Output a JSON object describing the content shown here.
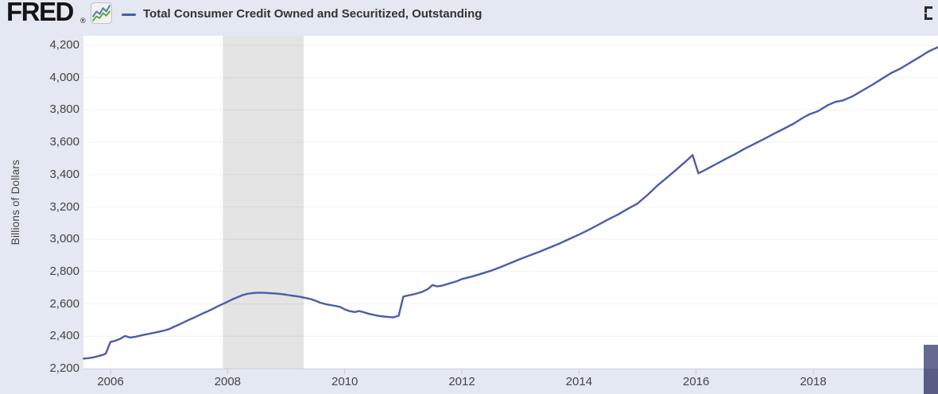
{
  "header": {
    "logo_text": "FRED",
    "registered_mark": "®",
    "legend": {
      "label": "Total Consumer Credit Owned and Securitized, Outstanding"
    }
  },
  "y_axis_title": "Billions of Dollars",
  "chart_data": {
    "type": "line",
    "title": "Total Consumer Credit Owned and Securitized, Outstanding",
    "ylabel": "Billions of Dollars",
    "xlabel": "",
    "units": "Billions of Dollars",
    "grid": "horizontal",
    "legend_position": "top-left",
    "x_ticks": [
      2006,
      2008,
      2010,
      2012,
      2014,
      2016,
      2018
    ],
    "y_ticks": [
      2200,
      2400,
      2600,
      2800,
      3000,
      3200,
      3400,
      3600,
      3800,
      4000,
      4200
    ],
    "xlim": [
      2005.54,
      2020.15
    ],
    "ylim": [
      2200,
      4200
    ],
    "recession_bands": [
      [
        2007.92,
        2009.3
      ]
    ],
    "series": [
      {
        "name": "Total Consumer Credit Owned and Securitized, Outstanding",
        "color": "#4a5da8",
        "points": [
          [
            2005.54,
            2262
          ],
          [
            2005.63,
            2265
          ],
          [
            2005.71,
            2270
          ],
          [
            2005.79,
            2277
          ],
          [
            2005.88,
            2286
          ],
          [
            2005.92,
            2293
          ],
          [
            2006.0,
            2365
          ],
          [
            2006.08,
            2372
          ],
          [
            2006.17,
            2385
          ],
          [
            2006.25,
            2402
          ],
          [
            2006.33,
            2392
          ],
          [
            2006.42,
            2396
          ],
          [
            2006.5,
            2403
          ],
          [
            2006.58,
            2410
          ],
          [
            2006.67,
            2416
          ],
          [
            2006.75,
            2422
          ],
          [
            2006.83,
            2428
          ],
          [
            2006.92,
            2436
          ],
          [
            2007.0,
            2444
          ],
          [
            2007.08,
            2458
          ],
          [
            2007.17,
            2472
          ],
          [
            2007.25,
            2486
          ],
          [
            2007.33,
            2500
          ],
          [
            2007.42,
            2514
          ],
          [
            2007.5,
            2528
          ],
          [
            2007.58,
            2542
          ],
          [
            2007.67,
            2556
          ],
          [
            2007.75,
            2570
          ],
          [
            2007.83,
            2585
          ],
          [
            2007.92,
            2600
          ],
          [
            2008.0,
            2614
          ],
          [
            2008.08,
            2628
          ],
          [
            2008.17,
            2642
          ],
          [
            2008.25,
            2654
          ],
          [
            2008.33,
            2662
          ],
          [
            2008.42,
            2667
          ],
          [
            2008.5,
            2669
          ],
          [
            2008.58,
            2670
          ],
          [
            2008.67,
            2668
          ],
          [
            2008.75,
            2666
          ],
          [
            2008.83,
            2664
          ],
          [
            2008.92,
            2661
          ],
          [
            2009.0,
            2657
          ],
          [
            2009.08,
            2652
          ],
          [
            2009.17,
            2648
          ],
          [
            2009.25,
            2643
          ],
          [
            2009.33,
            2637
          ],
          [
            2009.42,
            2630
          ],
          [
            2009.5,
            2620
          ],
          [
            2009.58,
            2608
          ],
          [
            2009.67,
            2599
          ],
          [
            2009.75,
            2593
          ],
          [
            2009.83,
            2588
          ],
          [
            2009.92,
            2582
          ],
          [
            2010.0,
            2566
          ],
          [
            2010.08,
            2556
          ],
          [
            2010.17,
            2550
          ],
          [
            2010.25,
            2556
          ],
          [
            2010.33,
            2548
          ],
          [
            2010.42,
            2538
          ],
          [
            2010.5,
            2532
          ],
          [
            2010.58,
            2526
          ],
          [
            2010.67,
            2522
          ],
          [
            2010.75,
            2519
          ],
          [
            2010.83,
            2517
          ],
          [
            2010.92,
            2527
          ],
          [
            2011.0,
            2645
          ],
          [
            2011.08,
            2652
          ],
          [
            2011.17,
            2659
          ],
          [
            2011.25,
            2667
          ],
          [
            2011.33,
            2676
          ],
          [
            2011.42,
            2692
          ],
          [
            2011.5,
            2717
          ],
          [
            2011.58,
            2708
          ],
          [
            2011.67,
            2714
          ],
          [
            2011.75,
            2723
          ],
          [
            2011.83,
            2731
          ],
          [
            2011.92,
            2741
          ],
          [
            2012.0,
            2754
          ],
          [
            2012.17,
            2769
          ],
          [
            2012.33,
            2786
          ],
          [
            2012.5,
            2806
          ],
          [
            2012.67,
            2829
          ],
          [
            2012.83,
            2853
          ],
          [
            2013.0,
            2878
          ],
          [
            2013.17,
            2901
          ],
          [
            2013.33,
            2924
          ],
          [
            2013.5,
            2949
          ],
          [
            2013.67,
            2974
          ],
          [
            2013.83,
            3001
          ],
          [
            2014.0,
            3029
          ],
          [
            2014.17,
            3059
          ],
          [
            2014.33,
            3090
          ],
          [
            2014.5,
            3123
          ],
          [
            2014.67,
            3154
          ],
          [
            2014.83,
            3187
          ],
          [
            2015.0,
            3221
          ],
          [
            2015.17,
            3274
          ],
          [
            2015.33,
            3329
          ],
          [
            2015.5,
            3381
          ],
          [
            2015.67,
            3433
          ],
          [
            2015.83,
            3484
          ],
          [
            2015.94,
            3521
          ],
          [
            2016.04,
            3408
          ],
          [
            2016.17,
            3432
          ],
          [
            2016.33,
            3463
          ],
          [
            2016.5,
            3496
          ],
          [
            2016.67,
            3528
          ],
          [
            2016.83,
            3560
          ],
          [
            2017.0,
            3591
          ],
          [
            2017.17,
            3622
          ],
          [
            2017.33,
            3653
          ],
          [
            2017.5,
            3684
          ],
          [
            2017.67,
            3716
          ],
          [
            2017.83,
            3753
          ],
          [
            2017.94,
            3774
          ],
          [
            2018.08,
            3792
          ],
          [
            2018.25,
            3830
          ],
          [
            2018.38,
            3850
          ],
          [
            2018.5,
            3858
          ],
          [
            2018.67,
            3884
          ],
          [
            2018.83,
            3918
          ],
          [
            2019.0,
            3954
          ],
          [
            2019.17,
            3992
          ],
          [
            2019.33,
            4028
          ],
          [
            2019.5,
            4058
          ],
          [
            2019.67,
            4096
          ],
          [
            2019.83,
            4130
          ],
          [
            2019.94,
            4156
          ],
          [
            2020.04,
            4174
          ],
          [
            2020.13,
            4188
          ]
        ]
      }
    ]
  },
  "colors": {
    "background": "#e3e8f2",
    "plot_background": "#ffffff",
    "line": "#4a5da8",
    "recession_band": "#e4e4e4",
    "gridline": "rgba(0,0,0,0.055)",
    "axis_line": "#ccd3e2",
    "tick_mark": "#c2cad9",
    "tick_text": "#444444",
    "legend_text": "#333333",
    "logo_text": "#141414",
    "logo_icon_blue": "#4f81b8",
    "logo_icon_green": "#67a83c",
    "range_handle_top": "#666a92",
    "range_handle_bottom": "#5a5e86"
  }
}
